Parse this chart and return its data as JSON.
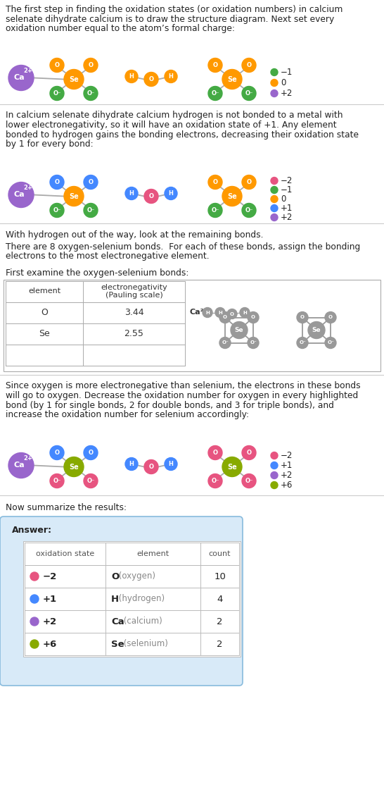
{
  "title_text": "The first step in finding the oxidation states (or oxidation numbers) in calcium\nselenate dihydrate calcium is to draw the structure diagram. Next set every\noxidation number equal to the atom’s formal charge:",
  "section2_text": "In calcium selenate dihydrate calcium hydrogen is not bonded to a metal with\nlower electronegativity, so it will have an oxidation state of +1. Any element\nbonded to hydrogen gains the bonding electrons, decreasing their oxidation state\nby 1 for every bond:",
  "section3_text1": "With hydrogen out of the way, look at the remaining bonds.",
  "section3_text2": "There are 8 oxygen-selenium bonds.  For each of these bonds, assign the bonding\nelectrons to the most electronegative element.",
  "section3_text3": "First examine the oxygen-selenium bonds:",
  "section4_text": "Since oxygen is more electronegative than selenium, the electrons in these bonds\nwill go to oxygen. Decrease the oxidation number for oxygen in every highlighted\nbond (by 1 for single bonds, 2 for double bonds, and 3 for triple bonds), and\nincrease the oxidation number for selenium accordingly:",
  "section5_text": "Now summarize the results:",
  "answer_label": "Answer:",
  "table_headers": [
    "oxidation state",
    "element",
    "count"
  ],
  "table_rows": [
    [
      "−2",
      "O (oxygen)",
      "10",
      "#e75480"
    ],
    [
      "+1",
      "H (hydrogen)",
      "4",
      "#4488ff"
    ],
    [
      "+2",
      "Ca (calcium)",
      "2",
      "#9966cc"
    ],
    [
      "+6",
      "Se (selenium)",
      "2",
      "#88aa00"
    ]
  ],
  "legend1": [
    [
      "−1",
      "#44aa44"
    ],
    [
      "0",
      "#ff9900"
    ],
    [
      "+2",
      "#9966cc"
    ]
  ],
  "legend2": [
    [
      "−2",
      "#e75480"
    ],
    [
      "−1",
      "#44aa44"
    ],
    [
      "0",
      "#ff9900"
    ],
    [
      "+1",
      "#4488ff"
    ],
    [
      "+2",
      "#9966cc"
    ]
  ],
  "legend4": [
    [
      "−2",
      "#e75480"
    ],
    [
      "+1",
      "#4488ff"
    ],
    [
      "+2",
      "#9966cc"
    ],
    [
      "+6",
      "#88aa00"
    ]
  ],
  "bg_color": "#ffffff",
  "text_color": "#222222",
  "divider_color": "#cccccc",
  "answer_box_color": "#d8eaf8",
  "answer_box_border": "#88bbdd",
  "Ca_color": "#9966cc",
  "Se_color_1": "#ff9900",
  "Se_color_4": "#88aa00",
  "O_green": "#44aa44",
  "O_orange": "#ff9900",
  "O_pink": "#e75480",
  "O_gray": "#999999",
  "H_orange": "#ff9900",
  "H_blue": "#4488ff",
  "H_gray": "#999999",
  "bond_gray": "#aaaaaa"
}
